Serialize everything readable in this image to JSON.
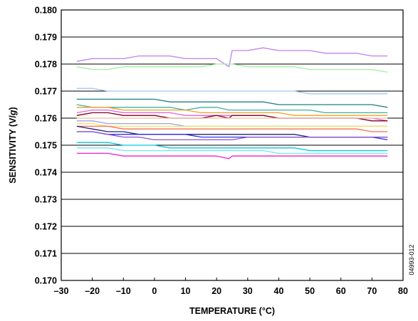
{
  "chart_data": {
    "type": "line",
    "xlabel": "TEMPERATURE (°C)",
    "ylabel_parts": [
      "SENSITIVITY (V/",
      "g",
      ")"
    ],
    "xlim": [
      -30,
      80
    ],
    "ylim": [
      0.17,
      0.18
    ],
    "xticks": [
      -30,
      -20,
      -10,
      0,
      10,
      20,
      30,
      40,
      50,
      60,
      70,
      80
    ],
    "xtick_labels": [
      "–30",
      "–20",
      "–10",
      "0",
      "10",
      "20",
      "30",
      "40",
      "50",
      "60",
      "70",
      "80"
    ],
    "yticks": [
      0.17,
      0.171,
      0.172,
      0.173,
      0.174,
      0.175,
      0.176,
      0.177,
      0.178,
      0.179,
      0.18
    ],
    "ytick_labels": [
      "0.170",
      "0.171",
      "0.172",
      "0.173",
      "0.174",
      "0.175",
      "0.176",
      "0.177",
      "0.178",
      "0.179",
      "0.180"
    ],
    "grid": "horizontal",
    "legend": "none",
    "figure_code": "04993-012",
    "x": [
      -25,
      -20,
      -15,
      -10,
      -5,
      0,
      5,
      10,
      15,
      20,
      24,
      25,
      30,
      35,
      40,
      45,
      50,
      55,
      60,
      65,
      70,
      75
    ],
    "series": [
      {
        "color": "#c080f0",
        "values": [
          0.1781,
          0.1782,
          0.1782,
          0.1782,
          0.1783,
          0.1783,
          0.1783,
          0.1782,
          0.1782,
          0.1782,
          0.1779,
          0.1785,
          0.1785,
          0.1786,
          0.1785,
          0.1785,
          0.1785,
          0.1784,
          0.1784,
          0.1784,
          0.1783,
          0.1783
        ]
      },
      {
        "color": "#a0f0a0",
        "values": [
          0.1779,
          0.1778,
          0.1778,
          0.1779,
          0.1779,
          0.1779,
          0.1779,
          0.1779,
          0.1779,
          0.178,
          0.178,
          0.178,
          0.1779,
          0.1779,
          0.1779,
          0.1779,
          0.1778,
          0.1778,
          0.1778,
          0.1778,
          0.1778,
          0.1777
        ]
      },
      {
        "color": "#a0c8f8",
        "values": [
          0.1771,
          0.1771,
          0.177,
          0.177,
          0.177,
          0.177,
          0.177,
          0.177,
          0.177,
          0.177,
          0.177,
          0.177,
          0.177,
          0.177,
          0.177,
          0.177,
          0.1769,
          0.1769,
          0.1769,
          0.1769,
          0.1769,
          0.1769
        ]
      },
      {
        "color": "#208080",
        "values": [
          0.1767,
          0.1767,
          0.1767,
          0.1767,
          0.1767,
          0.1767,
          0.1766,
          0.1766,
          0.1766,
          0.1766,
          0.1766,
          0.1766,
          0.1766,
          0.1766,
          0.1765,
          0.1765,
          0.1765,
          0.1765,
          0.1765,
          0.1765,
          0.1765,
          0.1764
        ]
      },
      {
        "color": "#40b0a0",
        "values": [
          0.1765,
          0.1764,
          0.1764,
          0.1764,
          0.1764,
          0.1764,
          0.1764,
          0.1763,
          0.1764,
          0.1764,
          0.1763,
          0.1763,
          0.1763,
          0.1763,
          0.1763,
          0.1763,
          0.1763,
          0.1762,
          0.1762,
          0.1762,
          0.1762,
          0.1762
        ]
      },
      {
        "color": "#f0a020",
        "values": [
          0.1764,
          0.1764,
          0.1764,
          0.1763,
          0.1763,
          0.1763,
          0.1763,
          0.1763,
          0.1762,
          0.1762,
          0.1762,
          0.1762,
          0.1762,
          0.1762,
          0.1762,
          0.1761,
          0.1761,
          0.1761,
          0.1761,
          0.1761,
          0.1761,
          0.1761
        ]
      },
      {
        "color": "#e060e0",
        "values": [
          0.1762,
          0.1763,
          0.1763,
          0.1762,
          0.1762,
          0.1762,
          0.1762,
          0.1761,
          0.1761,
          0.1761,
          0.1761,
          0.1761,
          0.1761,
          0.1761,
          0.176,
          0.176,
          0.176,
          0.176,
          0.176,
          0.176,
          0.176,
          0.1759
        ]
      },
      {
        "color": "#800020",
        "values": [
          0.1761,
          0.1762,
          0.1762,
          0.1761,
          0.1761,
          0.1761,
          0.176,
          0.176,
          0.176,
          0.1761,
          0.176,
          0.1761,
          0.1761,
          0.1761,
          0.176,
          0.176,
          0.176,
          0.176,
          0.176,
          0.176,
          0.1759,
          0.1759
        ]
      },
      {
        "color": "#f0c0a0",
        "values": [
          0.176,
          0.176,
          0.176,
          0.176,
          0.176,
          0.176,
          0.176,
          0.176,
          0.176,
          0.176,
          0.176,
          0.176,
          0.176,
          0.176,
          0.176,
          0.176,
          0.176,
          0.176,
          0.176,
          0.176,
          0.176,
          0.176
        ]
      },
      {
        "color": "#a0a0f0",
        "values": [
          0.1759,
          0.1759,
          0.1758,
          0.1758,
          0.1758,
          0.1758,
          0.1758,
          0.1757,
          0.1757,
          0.1757,
          0.1757,
          0.1757,
          0.1757,
          0.1757,
          0.1757,
          0.1757,
          0.1757,
          0.1757,
          0.1757,
          0.1757,
          0.1757,
          0.1757
        ]
      },
      {
        "color": "#f8e060",
        "values": [
          0.1758,
          0.1758,
          0.1757,
          0.1757,
          0.1757,
          0.1757,
          0.1757,
          0.1757,
          0.1757,
          0.1757,
          0.1757,
          0.1757,
          0.1757,
          0.1757,
          0.1757,
          0.1757,
          0.1757,
          0.1757,
          0.1757,
          0.1757,
          0.1757,
          0.1757
        ]
      },
      {
        "color": "#f07050",
        "values": [
          0.1757,
          0.1757,
          0.1757,
          0.1756,
          0.1756,
          0.1756,
          0.1756,
          0.1756,
          0.1756,
          0.1756,
          0.1756,
          0.1756,
          0.1756,
          0.1756,
          0.1756,
          0.1756,
          0.1756,
          0.1756,
          0.1756,
          0.1756,
          0.1755,
          0.1755
        ]
      },
      {
        "color": "#202080",
        "values": [
          0.1757,
          0.1756,
          0.1755,
          0.1755,
          0.1754,
          0.1754,
          0.1754,
          0.1754,
          0.1754,
          0.1754,
          0.1754,
          0.1754,
          0.1754,
          0.1754,
          0.1754,
          0.1754,
          0.1753,
          0.1753,
          0.1753,
          0.1753,
          0.1753,
          0.1753
        ]
      },
      {
        "color": "#3030e0",
        "values": [
          0.1755,
          0.1755,
          0.1754,
          0.1754,
          0.1754,
          0.1754,
          0.1754,
          0.1754,
          0.1753,
          0.1753,
          0.1753,
          0.1753,
          0.1753,
          0.1753,
          0.1753,
          0.1753,
          0.1753,
          0.1753,
          0.1753,
          0.1753,
          0.1753,
          0.1752
        ]
      },
      {
        "color": "#9050d0",
        "values": [
          0.1755,
          0.1755,
          0.1754,
          0.1753,
          0.1753,
          0.1752,
          0.1752,
          0.1752,
          0.1752,
          0.1752,
          0.1752,
          0.1752,
          0.1753,
          0.1753,
          0.1753,
          0.1753,
          0.1753,
          0.1753,
          0.1753,
          0.1753,
          0.1753,
          0.1753
        ]
      },
      {
        "color": "#00c8e0",
        "values": [
          0.1751,
          0.1751,
          0.1751,
          0.175,
          0.175,
          0.175,
          0.1749,
          0.1749,
          0.1749,
          0.1749,
          0.1749,
          0.1749,
          0.1749,
          0.1749,
          0.1749,
          0.1749,
          0.1748,
          0.1748,
          0.1748,
          0.1748,
          0.1748,
          0.1748
        ]
      },
      {
        "color": "#70e8f0",
        "values": [
          0.1749,
          0.1749,
          0.1749,
          0.1748,
          0.1748,
          0.1748,
          0.1748,
          0.1748,
          0.1748,
          0.1748,
          0.1748,
          0.1748,
          0.1748,
          0.1748,
          0.1747,
          0.1747,
          0.1747,
          0.1747,
          0.1747,
          0.1747,
          0.1747,
          0.1747
        ]
      },
      {
        "color": "#f020d0",
        "values": [
          0.1747,
          0.1747,
          0.1747,
          0.1746,
          0.1746,
          0.1746,
          0.1746,
          0.1746,
          0.1746,
          0.1746,
          0.1745,
          0.1746,
          0.1746,
          0.1746,
          0.1746,
          0.1746,
          0.1746,
          0.1746,
          0.1746,
          0.1746,
          0.1746,
          0.1746
        ]
      }
    ]
  }
}
